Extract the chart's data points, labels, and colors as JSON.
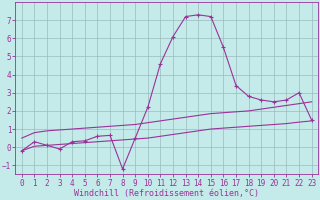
{
  "xlabel": "Windchill (Refroidissement éolien,°C)",
  "bg_color": "#c5eaea",
  "line_color": "#993399",
  "grid_color": "#99bbbb",
  "x_main": [
    0,
    1,
    2,
    3,
    4,
    5,
    6,
    7,
    8,
    9,
    10,
    11,
    12,
    13,
    14,
    15,
    16,
    17,
    18,
    19,
    20,
    21,
    22,
    23
  ],
  "y_main": [
    -0.2,
    0.3,
    0.1,
    -0.1,
    0.3,
    0.35,
    0.6,
    0.65,
    -1.2,
    0.5,
    2.2,
    4.6,
    6.1,
    7.2,
    7.3,
    7.2,
    5.5,
    3.4,
    2.8,
    2.6,
    2.5,
    2.6,
    3.0,
    1.5
  ],
  "y_upper": [
    0.5,
    0.8,
    0.9,
    0.95,
    1.0,
    1.05,
    1.1,
    1.15,
    1.2,
    1.25,
    1.35,
    1.45,
    1.55,
    1.65,
    1.75,
    1.85,
    1.9,
    1.95,
    2.0,
    2.1,
    2.2,
    2.3,
    2.4,
    2.5
  ],
  "y_lower": [
    -0.2,
    0.05,
    0.1,
    0.15,
    0.2,
    0.25,
    0.3,
    0.35,
    0.4,
    0.45,
    0.5,
    0.6,
    0.7,
    0.8,
    0.9,
    1.0,
    1.05,
    1.1,
    1.15,
    1.2,
    1.25,
    1.3,
    1.38,
    1.45
  ],
  "xlim": [
    -0.5,
    23.5
  ],
  "ylim": [
    -1.5,
    8.0
  ],
  "yticks": [
    -1,
    0,
    1,
    2,
    3,
    4,
    5,
    6,
    7
  ],
  "xticks": [
    0,
    1,
    2,
    3,
    4,
    5,
    6,
    7,
    8,
    9,
    10,
    11,
    12,
    13,
    14,
    15,
    16,
    17,
    18,
    19,
    20,
    21,
    22,
    23
  ],
  "tick_fontsize": 5.5,
  "xlabel_fontsize": 6.0
}
